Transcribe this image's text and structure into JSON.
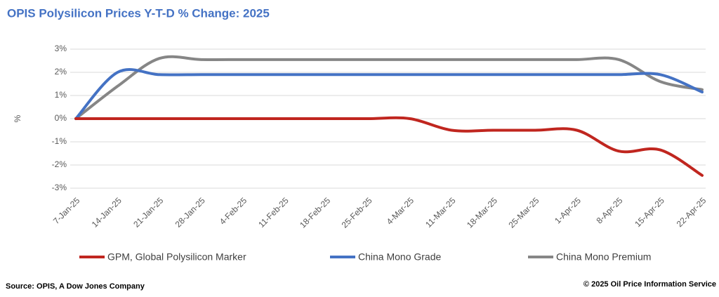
{
  "chart_data": {
    "type": "line",
    "title": "OPIS Polysilicon Prices Y-T-D % Change: 2025",
    "y_label": "%",
    "categories": [
      "7-Jan-25",
      "14-Jan-25",
      "21-Jan-25",
      "28-Jan-25",
      "4-Feb-25",
      "11-Feb-25",
      "18-Feb-25",
      "25-Feb-25",
      "4-Mar-25",
      "11-Mar-25",
      "18-Mar-25",
      "25-Mar-25",
      "1-Apr-25",
      "8-Apr-25",
      "15-Apr-25",
      "22-Apr-25"
    ],
    "series": [
      {
        "name": "GPM, Global Polysilicon Marker",
        "color": "#c0261f",
        "values": [
          0,
          0,
          0,
          0,
          0,
          0,
          0,
          0,
          0,
          -0.5,
          -0.5,
          -0.5,
          -0.5,
          -1.4,
          -1.35,
          -2.45
        ]
      },
      {
        "name": "China Mono Grade",
        "color": "#4472c4",
        "values": [
          0,
          2.0,
          1.9,
          1.9,
          1.9,
          1.9,
          1.9,
          1.9,
          1.9,
          1.9,
          1.9,
          1.9,
          1.9,
          1.9,
          1.9,
          1.15
        ]
      },
      {
        "name": "China Mono Premium",
        "color": "#868686",
        "values": [
          0,
          1.4,
          2.6,
          2.55,
          2.55,
          2.55,
          2.55,
          2.55,
          2.55,
          2.55,
          2.55,
          2.55,
          2.55,
          2.55,
          1.6,
          1.25
        ]
      }
    ],
    "ylim": [
      -3,
      3
    ],
    "yticks": [
      {
        "value": 3,
        "label": "3%"
      },
      {
        "value": 2,
        "label": "2%"
      },
      {
        "value": 1,
        "label": "1%"
      },
      {
        "value": 0,
        "label": "0%"
      },
      {
        "value": -1,
        "label": "-1%"
      },
      {
        "value": -2,
        "label": "-2%"
      },
      {
        "value": -3,
        "label": "-3%"
      }
    ],
    "grid": true,
    "legend": "bottom",
    "source": "Source: OPIS, A Dow Jones Company",
    "copyright": "© 2025 Oil Price Information Service"
  }
}
